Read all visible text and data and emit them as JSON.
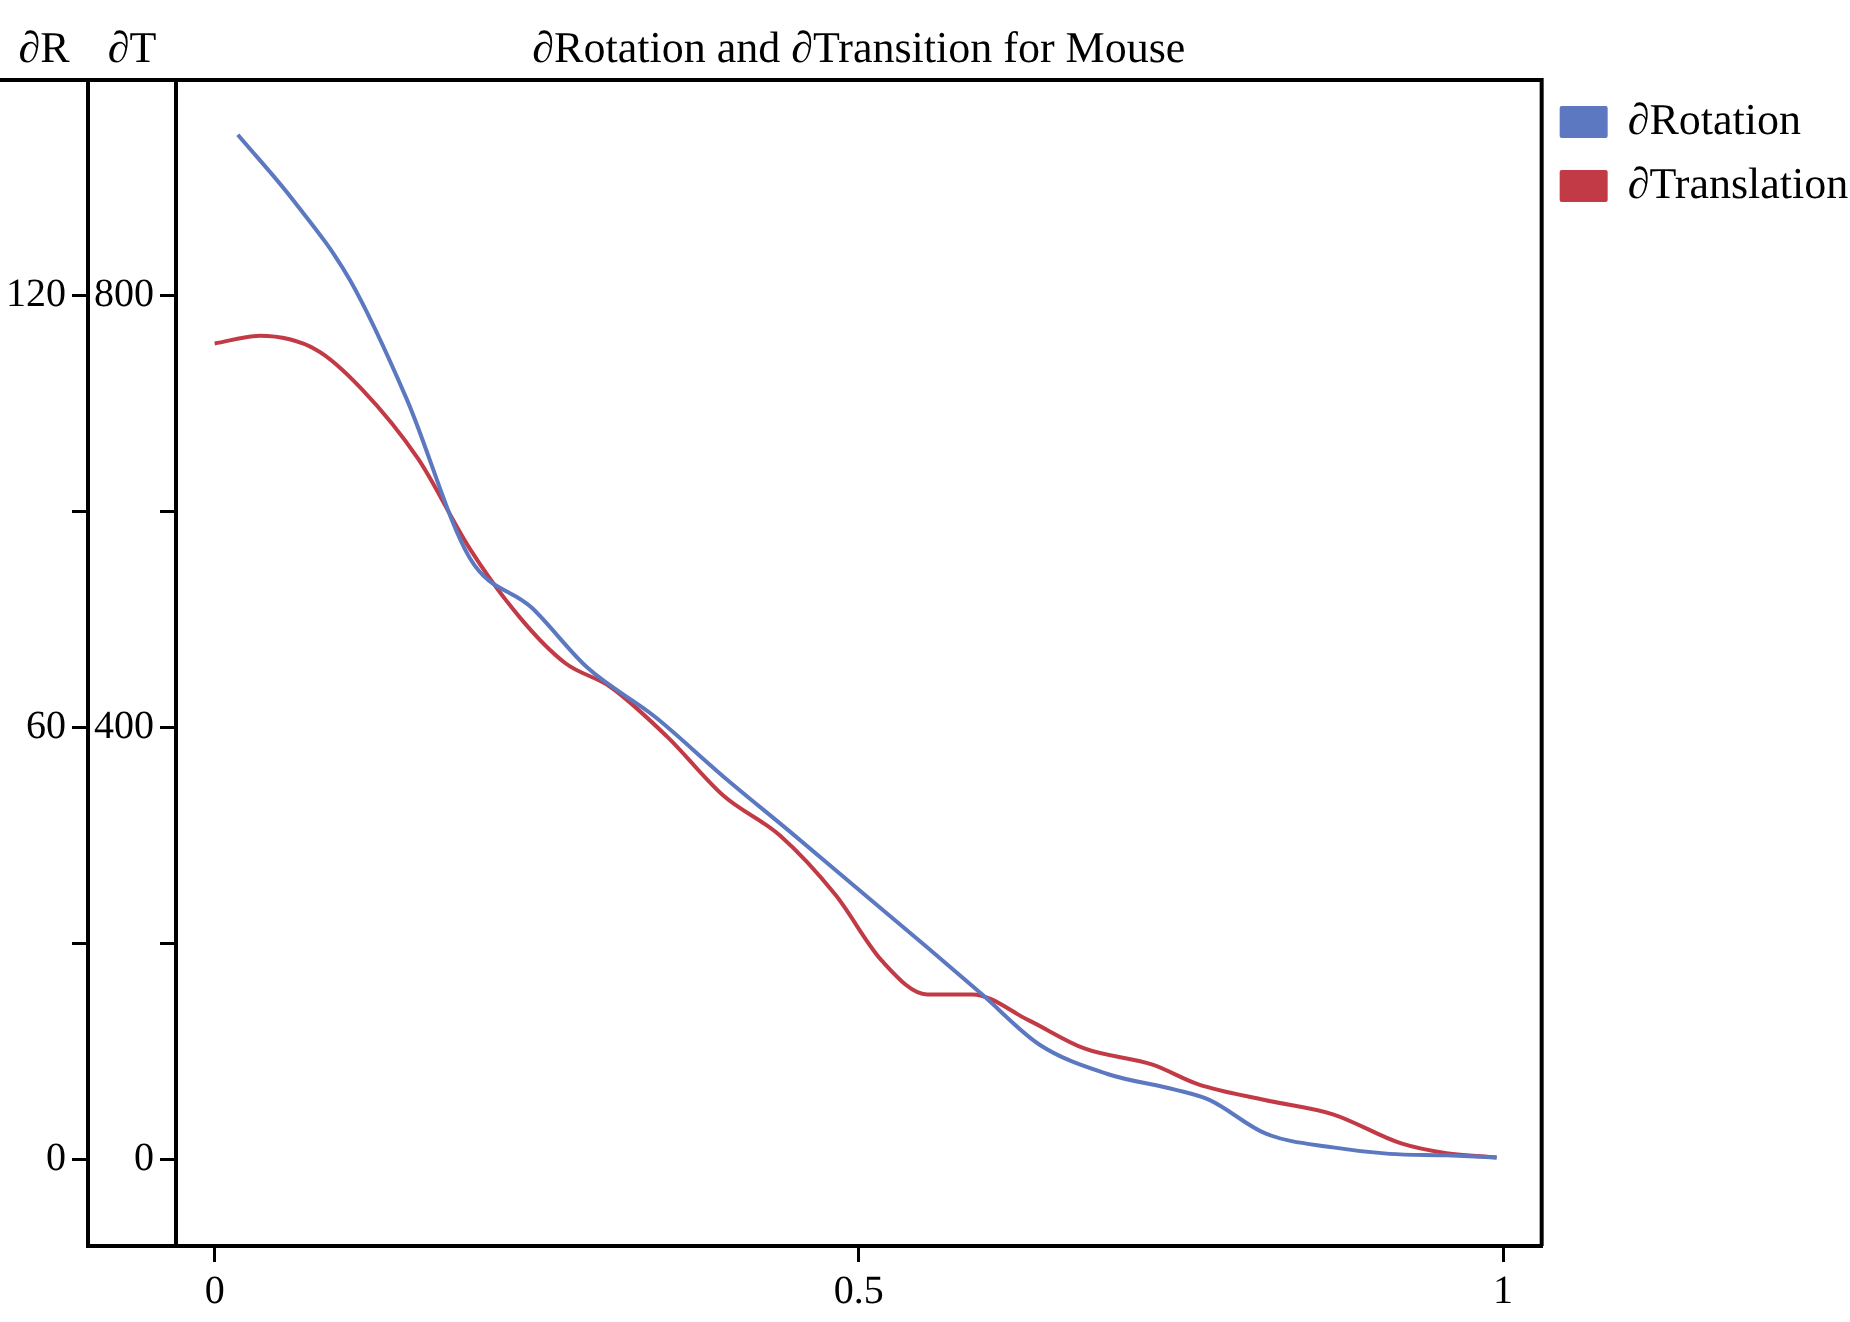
{
  "chart_data": {
    "type": "line",
    "title": "∂Rotation and ∂Transition for Mouse",
    "ylabel": "∂R",
    "y2label": "∂T",
    "xlim": [
      -0.03,
      1.03
    ],
    "xticks": [
      0,
      0.5,
      1
    ],
    "ylim": [
      -12,
      150
    ],
    "yticks": [
      0,
      {
        "value": 30,
        "label": null
      },
      60,
      {
        "value": 90,
        "label": null
      },
      120
    ],
    "y2lim": [
      -80,
      1000
    ],
    "y2ticks": [
      0,
      {
        "value": 200,
        "label": null
      },
      400,
      {
        "value": 600,
        "label": null
      },
      800
    ],
    "grid": false,
    "legend": "right",
    "marker": "none",
    "line_style": "solid",
    "series": [
      {
        "name": "∂Rotation",
        "color": "#5b78c0",
        "x": [
          0.018,
          0.061,
          0.105,
          0.149,
          0.198,
          0.246,
          0.289,
          0.342,
          0.395,
          0.447,
          0.5,
          0.553,
          0.596,
          0.64,
          0.693,
          0.746,
          0.772,
          0.816,
          0.868,
          0.912,
          0.956,
          0.995
        ],
        "values": [
          142.4,
          133.3,
          122.2,
          105.7,
          83.6,
          76.7,
          68.4,
          61.5,
          53.2,
          45.5,
          37.5,
          29.5,
          22.9,
          16.0,
          11.9,
          9.7,
          8.3,
          3.6,
          1.7,
          0.8,
          0.6,
          0.3
        ]
      },
      {
        "name": "∂Translation",
        "color": "#c23a45",
        "axis": "y2",
        "x": [
          0.0,
          0.035,
          0.079,
          0.114,
          0.158,
          0.198,
          0.237,
          0.272,
          0.307,
          0.351,
          0.395,
          0.439,
          0.482,
          0.518,
          0.553,
          0.588,
          0.632,
          0.675,
          0.728,
          0.763,
          0.816,
          0.868,
          0.921,
          0.956,
          0.995
        ],
        "values": [
          756,
          763,
          750,
          714,
          649,
          566,
          502,
          460,
          438,
          392,
          337,
          300,
          245,
          184,
          153,
          153,
          129,
          103,
          88,
          70,
          55,
          42,
          15,
          6,
          2
        ]
      }
    ]
  }
}
